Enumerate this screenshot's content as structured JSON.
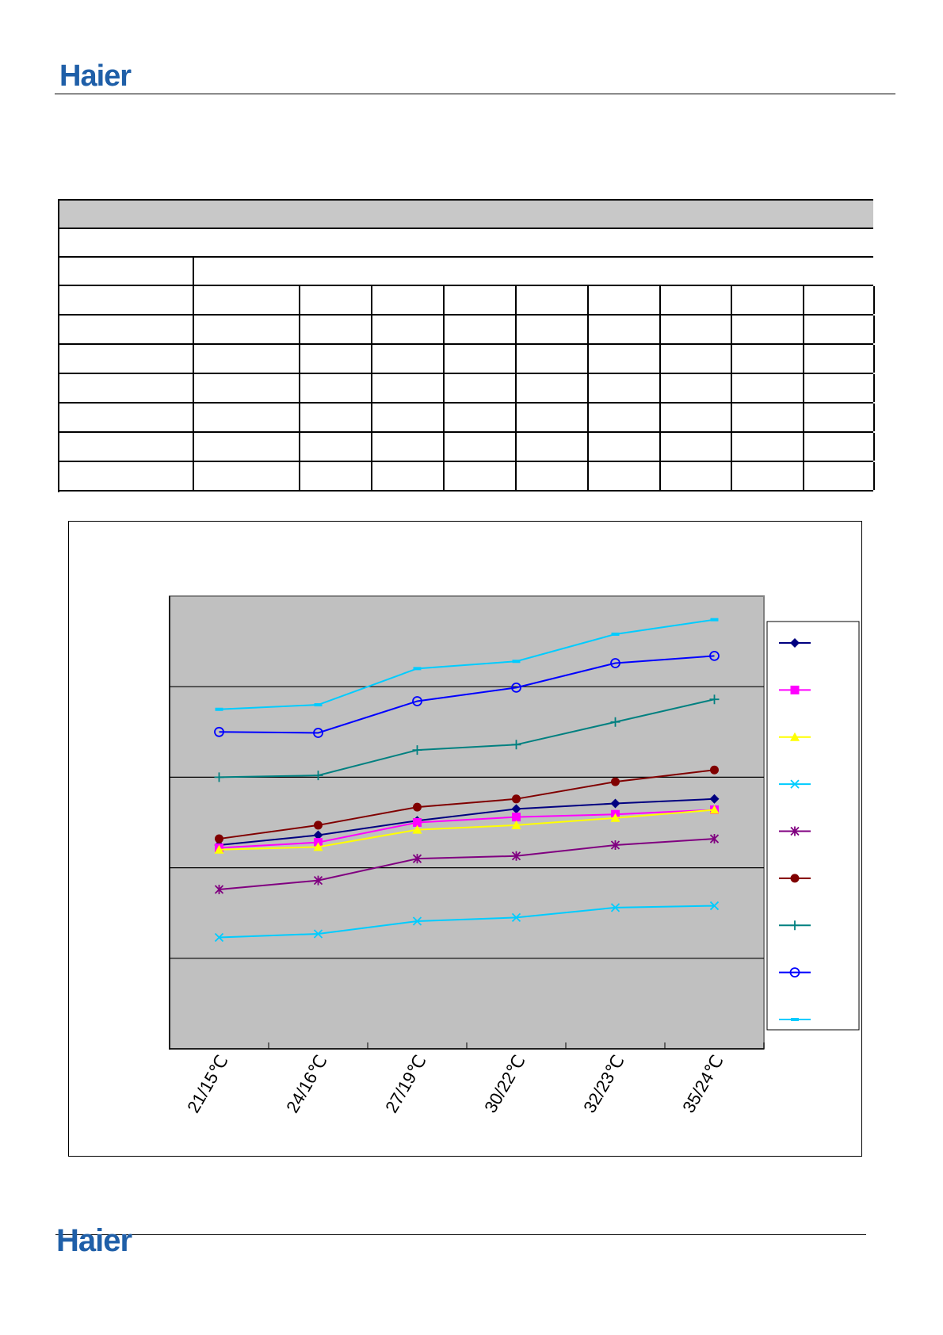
{
  "header": {
    "logo_text": "Haier"
  },
  "footer": {
    "logo_text": "Haier"
  },
  "table": {
    "rows": 10,
    "data_columns": 8
  },
  "chart_data": {
    "type": "line",
    "title": "",
    "xlabel": "",
    "ylabel": "",
    "categories": [
      "21/15℃",
      "24/16℃",
      "27/19℃",
      "30/22℃",
      "32/23℃",
      "35/24℃"
    ],
    "ylim": [
      0,
      5
    ],
    "grid": true,
    "legend": "right",
    "plot_background": "#c0c0c0",
    "series": [
      {
        "values": [
          2.25,
          2.36,
          2.52,
          2.65,
          2.71,
          2.76
        ],
        "color": "#000080",
        "marker": "diamond"
      },
      {
        "values": [
          2.22,
          2.28,
          2.5,
          2.56,
          2.59,
          2.64
        ],
        "color": "#ff00ff",
        "marker": "square"
      },
      {
        "values": [
          2.2,
          2.23,
          2.42,
          2.47,
          2.55,
          2.64
        ],
        "color": "#ffff00",
        "marker": "triangle"
      },
      {
        "values": [
          1.23,
          1.27,
          1.41,
          1.45,
          1.56,
          1.58
        ],
        "color": "#00ccff",
        "marker": "x"
      },
      {
        "values": [
          1.76,
          1.86,
          2.1,
          2.13,
          2.25,
          2.32
        ],
        "color": "#800080",
        "marker": "star"
      },
      {
        "values": [
          2.32,
          2.47,
          2.67,
          2.76,
          2.95,
          3.08
        ],
        "color": "#800000",
        "marker": "circle"
      },
      {
        "values": [
          3.0,
          3.02,
          3.3,
          3.36,
          3.61,
          3.86
        ],
        "color": "#008080",
        "marker": "plus"
      },
      {
        "values": [
          3.5,
          3.49,
          3.84,
          3.99,
          4.26,
          4.34
        ],
        "color": "#0000ff",
        "marker": "open-circle"
      },
      {
        "values": [
          3.75,
          3.8,
          4.2,
          4.28,
          4.58,
          4.74
        ],
        "color": "#00ccff",
        "marker": "dash"
      }
    ]
  }
}
